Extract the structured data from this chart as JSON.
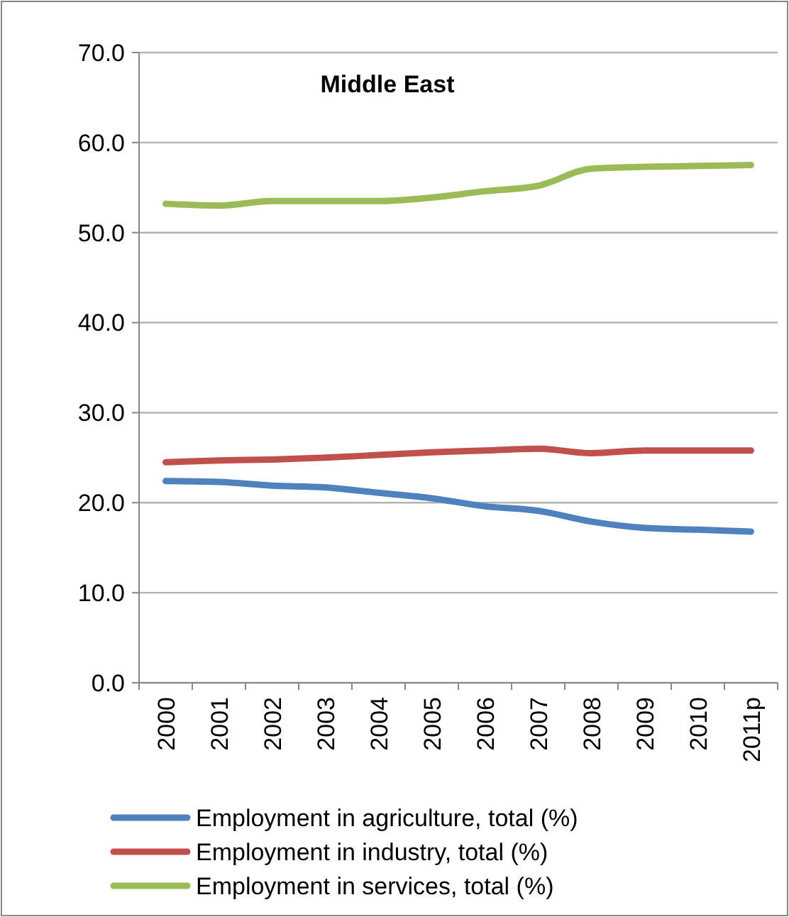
{
  "chart_data": {
    "type": "line",
    "title": "Middle East",
    "categories": [
      "2000",
      "2001",
      "2002",
      "2003",
      "2004",
      "2005",
      "2006",
      "2007",
      "2008",
      "2009",
      "2010",
      "2011p"
    ],
    "series": [
      {
        "name": "Employment in agriculture, total (%)",
        "color": "#4f81bd",
        "values": [
          22.4,
          22.3,
          21.9,
          21.7,
          21.1,
          20.5,
          19.6,
          19.1,
          17.9,
          17.2,
          17.0,
          16.8
        ]
      },
      {
        "name": "Employment in industry, total (%)",
        "color": "#c0504d",
        "values": [
          24.5,
          24.7,
          24.8,
          25.0,
          25.3,
          25.6,
          25.8,
          26.0,
          25.5,
          25.8,
          25.8,
          25.8
        ]
      },
      {
        "name": "Employment in services, total (%)",
        "color": "#9bbb59",
        "values": [
          53.2,
          53.0,
          53.5,
          53.5,
          53.5,
          53.9,
          54.6,
          55.2,
          57.1,
          57.3,
          57.4,
          57.5
        ]
      }
    ],
    "ylim": [
      0,
      70
    ],
    "yticks": [
      {
        "value": 0,
        "label": "0.0"
      },
      {
        "value": 10,
        "label": "10.0"
      },
      {
        "value": 20,
        "label": "20.0"
      },
      {
        "value": 30,
        "label": "30.0"
      },
      {
        "value": 40,
        "label": "40.0"
      },
      {
        "value": 50,
        "label": "50.0"
      },
      {
        "value": 60,
        "label": "60.0"
      },
      {
        "value": 70,
        "label": "70.0"
      }
    ],
    "grid": "y",
    "legend": "bottom",
    "marker": "none",
    "line_style": "solid"
  }
}
